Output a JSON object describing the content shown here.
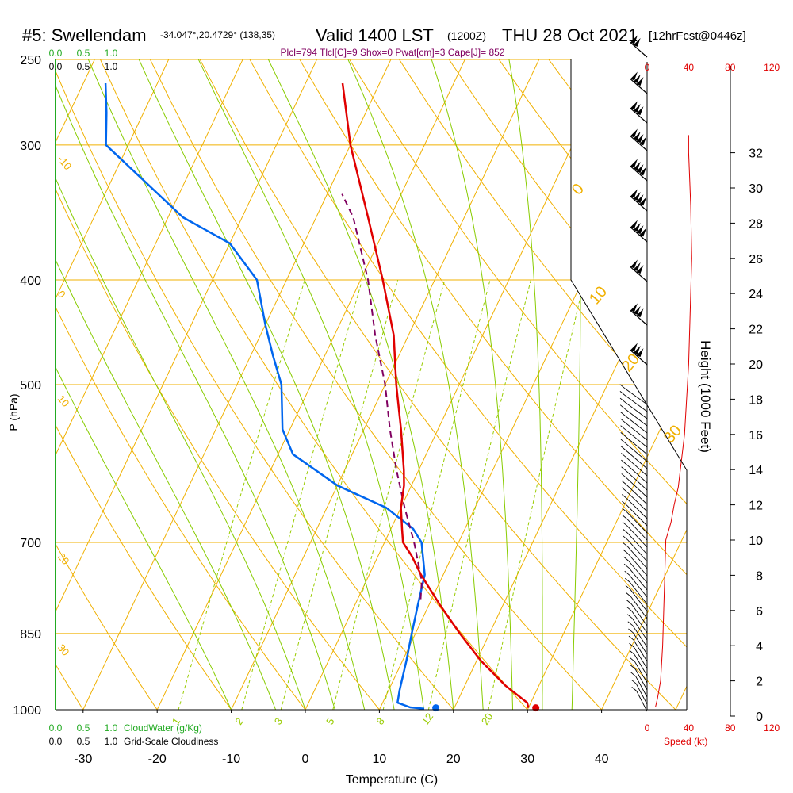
{
  "header": {
    "station": "#5: Swellendam",
    "coords": "-34.047°,20.4729° (138,35)",
    "valid": "Valid 1400 LST",
    "valid_z": "(1200Z)",
    "date": "THU 28 Oct 2021",
    "fcst": "[12hrFcst@0446z]",
    "indices": "Plcl=794 Tlcl[C]=9 Shox=0 Pwat[cm]=3 Cape[J]= 852"
  },
  "colors": {
    "temperature": "#e00000",
    "dewpoint": "#0066ee",
    "parcel": "#800060",
    "isotherm_isobar": "#f0b000",
    "dry_adiabat": "#f0b000",
    "moist_adiabat": "#88cc00",
    "mixing_ratio": "#99cc00",
    "cloudwater": "#22aa22",
    "speed": "#e00000"
  },
  "chart_data": {
    "type": "skew-t",
    "xlabel": "Temperature (C)",
    "ylabel": "P (hPa)",
    "y2label": "Height (1000 Feet)",
    "x_ticks": [
      "-30",
      "-20",
      "-10",
      "0",
      "10",
      "20",
      "30",
      "40"
    ],
    "p_ticks": [
      "250",
      "300",
      "400",
      "500",
      "700",
      "850",
      "1000"
    ],
    "height_ticks": [
      "0",
      "2",
      "4",
      "6",
      "8",
      "10",
      "12",
      "14",
      "16",
      "18",
      "20",
      "22",
      "24",
      "26",
      "28",
      "30",
      "32"
    ],
    "temperature": [
      [
        996,
        30
      ],
      [
        985,
        29.5
      ],
      [
        950,
        25.5
      ],
      [
        900,
        20.5
      ],
      [
        850,
        16
      ],
      [
        800,
        11.5
      ],
      [
        750,
        7
      ],
      [
        720,
        4.5
      ],
      [
        700,
        2.5
      ],
      [
        680,
        1.5
      ],
      [
        650,
        0
      ],
      [
        620,
        -1
      ],
      [
        600,
        -2
      ],
      [
        550,
        -5
      ],
      [
        500,
        -8.5
      ],
      [
        450,
        -12
      ],
      [
        400,
        -17
      ],
      [
        350,
        -23
      ],
      [
        300,
        -30
      ],
      [
        263,
        -35
      ]
    ],
    "dewpoint": [
      [
        998,
        16
      ],
      [
        995,
        14
      ],
      [
        985,
        12
      ],
      [
        960,
        11.5
      ],
      [
        900,
        10.5
      ],
      [
        850,
        9.5
      ],
      [
        800,
        8.5
      ],
      [
        750,
        7.5
      ],
      [
        700,
        5
      ],
      [
        680,
        3
      ],
      [
        650,
        -2
      ],
      [
        620,
        -10
      ],
      [
        580,
        -18
      ],
      [
        550,
        -21
      ],
      [
        500,
        -24
      ],
      [
        470,
        -27
      ],
      [
        440,
        -30
      ],
      [
        400,
        -34
      ],
      [
        370,
        -40
      ],
      [
        350,
        -48
      ],
      [
        300,
        -63
      ],
      [
        280,
        -65
      ],
      [
        263,
        -67
      ]
    ],
    "parcel": [
      [
        790,
        8.5
      ],
      [
        760,
        7.5
      ],
      [
        700,
        4
      ],
      [
        650,
        0.5
      ],
      [
        600,
        -3
      ],
      [
        550,
        -6.5
      ],
      [
        500,
        -10
      ],
      [
        450,
        -14.5
      ],
      [
        400,
        -19
      ],
      [
        370,
        -22.5
      ],
      [
        350,
        -25
      ],
      [
        333,
        -28
      ]
    ],
    "surface_temp_dot": [
      996,
      31
    ],
    "surface_dew_dot": [
      996,
      17.5
    ],
    "mixing_ratio_labels": [
      "1",
      "2",
      "3",
      "5",
      "8",
      "12",
      "20"
    ],
    "isotherm_labels": [
      "-10",
      "0",
      "10",
      "20",
      "30"
    ],
    "adiabat_labels": [
      "0",
      "10",
      "20",
      "30"
    ],
    "wind_speed_profile": [
      [
        0.5,
        8
      ],
      [
        1,
        10
      ],
      [
        2,
        13
      ],
      [
        4,
        15
      ],
      [
        8,
        17
      ],
      [
        10,
        18
      ],
      [
        11,
        23
      ],
      [
        12,
        26
      ],
      [
        13,
        30
      ],
      [
        16,
        36
      ],
      [
        20,
        40
      ],
      [
        24,
        42
      ],
      [
        26,
        43
      ],
      [
        29,
        42
      ],
      [
        32,
        40
      ],
      [
        33,
        40
      ]
    ],
    "cloudwater_ticks": [
      "0.0",
      "0.5",
      "1.0"
    ],
    "cloudiness_ticks": [
      "0.0",
      "0.5",
      "1.0"
    ],
    "cloudwater_label": "CloudWater (g/Kg)",
    "cloudiness_label": "Grid-Scale Cloudiness",
    "speed_ticks": [
      "0",
      "40",
      "80",
      "120"
    ],
    "speed_label": "Speed (kt)"
  }
}
